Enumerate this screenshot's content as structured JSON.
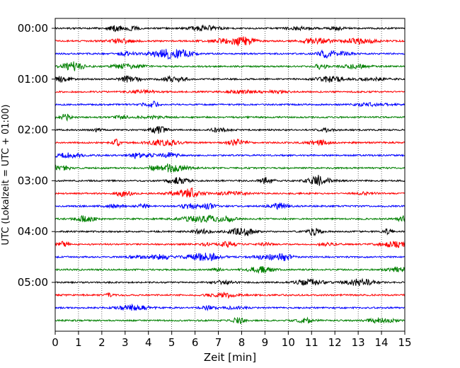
{
  "chart_data": {
    "type": "line",
    "title": "",
    "xlabel": "Zeit  [min]",
    "ylabel": "UTC (Lokalzeit = UTC + 01:00)",
    "xlim": [
      0,
      15
    ],
    "x_ticks": [
      "0",
      "1",
      "2",
      "3",
      "4",
      "5",
      "6",
      "7",
      "8",
      "9",
      "10",
      "11",
      "12",
      "13",
      "14",
      "15"
    ],
    "y_ticks": [
      "00:00",
      "01:00",
      "02:00",
      "03:00",
      "04:00",
      "05:00"
    ],
    "grid": "vertical dotted at every minute",
    "trace_interval_min": 15,
    "traces_per_hour": 4,
    "colors_cycle": [
      "#000000",
      "#ff0000",
      "#0000ff",
      "#008000"
    ],
    "series": [
      {
        "start": "00:00",
        "color": "#000000"
      },
      {
        "start": "00:15",
        "color": "#ff0000"
      },
      {
        "start": "00:30",
        "color": "#0000ff"
      },
      {
        "start": "00:45",
        "color": "#008000"
      },
      {
        "start": "01:00",
        "color": "#000000"
      },
      {
        "start": "01:15",
        "color": "#ff0000"
      },
      {
        "start": "01:30",
        "color": "#0000ff"
      },
      {
        "start": "01:45",
        "color": "#008000"
      },
      {
        "start": "02:00",
        "color": "#000000"
      },
      {
        "start": "02:15",
        "color": "#ff0000"
      },
      {
        "start": "02:30",
        "color": "#0000ff"
      },
      {
        "start": "02:45",
        "color": "#008000"
      },
      {
        "start": "03:00",
        "color": "#000000"
      },
      {
        "start": "03:15",
        "color": "#ff0000"
      },
      {
        "start": "03:30",
        "color": "#0000ff"
      },
      {
        "start": "03:45",
        "color": "#008000"
      },
      {
        "start": "04:00",
        "color": "#000000"
      },
      {
        "start": "04:15",
        "color": "#ff0000"
      },
      {
        "start": "04:30",
        "color": "#0000ff"
      },
      {
        "start": "04:45",
        "color": "#008000"
      },
      {
        "start": "05:00",
        "color": "#000000"
      },
      {
        "start": "05:15",
        "color": "#ff0000"
      },
      {
        "start": "05:30",
        "color": "#0000ff"
      },
      {
        "start": "05:45",
        "color": "#008000"
      }
    ]
  }
}
